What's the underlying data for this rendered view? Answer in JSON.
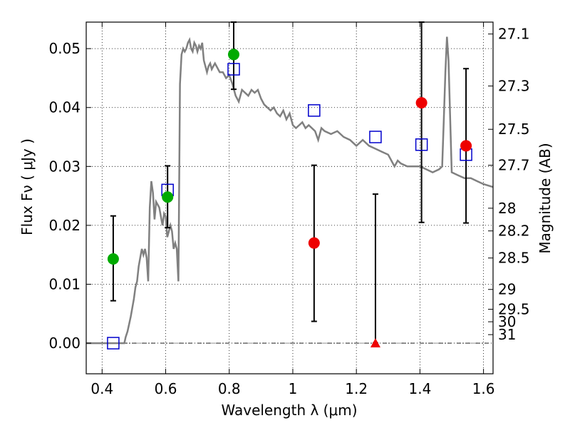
{
  "chart_data": {
    "type": "scatter",
    "xlabel": "Wavelength  λ (μm)",
    "ylabel": "Flux  Fν  ( μJy )",
    "y2label": "Magnitude (AB)",
    "xlim": [
      0.35,
      1.63
    ],
    "ylim": [
      -0.0052,
      0.0545
    ],
    "grid": true,
    "x_ticks": [
      {
        "value": 0.4,
        "label": "0.4"
      },
      {
        "value": 0.6,
        "label": "0.6"
      },
      {
        "value": 0.8,
        "label": "0.8"
      },
      {
        "value": 1.0,
        "label": "1"
      },
      {
        "value": 1.2,
        "label": "1.2"
      },
      {
        "value": 1.4,
        "label": "1.4"
      },
      {
        "value": 1.6,
        "label": "1.6"
      }
    ],
    "y_ticks": [
      {
        "value": 0.0,
        "label": "0.00"
      },
      {
        "value": 0.01,
        "label": "0.01"
      },
      {
        "value": 0.02,
        "label": "0.02"
      },
      {
        "value": 0.03,
        "label": "0.03"
      },
      {
        "value": 0.04,
        "label": "0.04"
      },
      {
        "value": 0.05,
        "label": "0.05"
      }
    ],
    "mag_ticks": [
      {
        "mag": 27.1,
        "label": "27.1"
      },
      {
        "mag": 27.3,
        "label": "27.3"
      },
      {
        "mag": 27.5,
        "label": "27.5"
      },
      {
        "mag": 27.7,
        "label": "27.7"
      },
      {
        "mag": 28.0,
        "label": "28"
      },
      {
        "mag": 28.2,
        "label": "28.2"
      },
      {
        "mag": 28.5,
        "label": "28.5"
      },
      {
        "mag": 29.0,
        "label": "29"
      },
      {
        "mag": 29.5,
        "label": "29.5"
      },
      {
        "mag": 30.0,
        "label": "30"
      },
      {
        "mag": 31.0,
        "label": "31"
      }
    ],
    "model_spectrum": {
      "color": "#808080",
      "x": [
        0.35,
        0.47,
        0.474,
        0.48,
        0.49,
        0.5,
        0.505,
        0.51,
        0.515,
        0.52,
        0.525,
        0.53,
        0.535,
        0.54,
        0.545,
        0.55,
        0.555,
        0.56,
        0.565,
        0.57,
        0.575,
        0.58,
        0.585,
        0.59,
        0.595,
        0.6,
        0.605,
        0.61,
        0.615,
        0.62,
        0.625,
        0.63,
        0.635,
        0.64,
        0.645,
        0.65,
        0.655,
        0.66,
        0.665,
        0.67,
        0.675,
        0.68,
        0.685,
        0.69,
        0.695,
        0.7,
        0.705,
        0.71,
        0.715,
        0.72,
        0.725,
        0.73,
        0.735,
        0.74,
        0.745,
        0.75,
        0.755,
        0.76,
        0.77,
        0.78,
        0.79,
        0.8,
        0.81,
        0.82,
        0.83,
        0.84,
        0.85,
        0.86,
        0.87,
        0.88,
        0.89,
        0.9,
        0.91,
        0.92,
        0.93,
        0.94,
        0.95,
        0.96,
        0.97,
        0.98,
        0.99,
        1.0,
        1.01,
        1.02,
        1.03,
        1.04,
        1.05,
        1.06,
        1.07,
        1.08,
        1.09,
        1.1,
        1.12,
        1.14,
        1.16,
        1.18,
        1.2,
        1.22,
        1.24,
        1.26,
        1.28,
        1.3,
        1.31,
        1.32,
        1.33,
        1.34,
        1.36,
        1.38,
        1.4,
        1.42,
        1.44,
        1.46,
        1.47,
        1.475,
        1.48,
        1.485,
        1.49,
        1.5,
        1.52,
        1.54,
        1.56,
        1.58,
        1.6,
        1.63
      ],
      "y": [
        0.0,
        0.0,
        0.001,
        0.002,
        0.0045,
        0.0075,
        0.0095,
        0.0105,
        0.013,
        0.0145,
        0.016,
        0.015,
        0.016,
        0.0145,
        0.0105,
        0.023,
        0.0275,
        0.0255,
        0.021,
        0.024,
        0.0235,
        0.023,
        0.0215,
        0.02,
        0.022,
        0.0215,
        0.018,
        0.019,
        0.02,
        0.019,
        0.016,
        0.017,
        0.016,
        0.0105,
        0.044,
        0.049,
        0.05,
        0.0495,
        0.05,
        0.051,
        0.0515,
        0.05,
        0.0495,
        0.051,
        0.0505,
        0.0495,
        0.0505,
        0.05,
        0.051,
        0.048,
        0.047,
        0.046,
        0.047,
        0.0475,
        0.0465,
        0.047,
        0.0475,
        0.047,
        0.046,
        0.046,
        0.045,
        0.0455,
        0.044,
        0.042,
        0.041,
        0.043,
        0.0425,
        0.042,
        0.043,
        0.0425,
        0.043,
        0.0415,
        0.0405,
        0.04,
        0.0395,
        0.04,
        0.039,
        0.0385,
        0.0395,
        0.038,
        0.039,
        0.037,
        0.0365,
        0.037,
        0.0375,
        0.0365,
        0.037,
        0.0365,
        0.036,
        0.0345,
        0.0365,
        0.036,
        0.0355,
        0.036,
        0.035,
        0.0345,
        0.0335,
        0.0345,
        0.0335,
        0.033,
        0.0325,
        0.032,
        0.031,
        0.03,
        0.031,
        0.0305,
        0.03,
        0.03,
        0.03,
        0.0295,
        0.029,
        0.0295,
        0.03,
        0.038,
        0.046,
        0.052,
        0.048,
        0.029,
        0.0285,
        0.028,
        0.028,
        0.0275,
        0.027,
        0.0265
      ]
    },
    "model_photometry": {
      "color": "#0000cc",
      "marker": "open-square",
      "x": [
        0.435,
        0.606,
        0.814,
        1.067,
        1.26,
        1.405,
        1.545
      ],
      "y": [
        0.0,
        0.026,
        0.0465,
        0.0395,
        0.035,
        0.0337,
        0.032
      ]
    },
    "detections": {
      "color": "#00aa00",
      "marker": "circle",
      "x": [
        0.435,
        0.606,
        0.814
      ],
      "y": [
        0.0143,
        0.0248,
        0.049
      ],
      "err_low": [
        0.0072,
        0.0196,
        0.0431
      ],
      "err_high": [
        0.0216,
        0.0301,
        0.0545
      ]
    },
    "ir_measurements": {
      "color": "#ee0000",
      "marker": "circle",
      "x": [
        1.067,
        1.405,
        1.545
      ],
      "y": [
        0.017,
        0.0408,
        0.0335
      ],
      "err_low": [
        0.0037,
        0.0205,
        0.0204
      ],
      "err_high": [
        0.0302,
        0.0545,
        0.0466
      ]
    },
    "upper_limit": {
      "color": "#ee0000",
      "marker": "triangle",
      "x": 1.26,
      "y": 0.0,
      "err_low": 0.0,
      "err_high": 0.0253
    }
  }
}
